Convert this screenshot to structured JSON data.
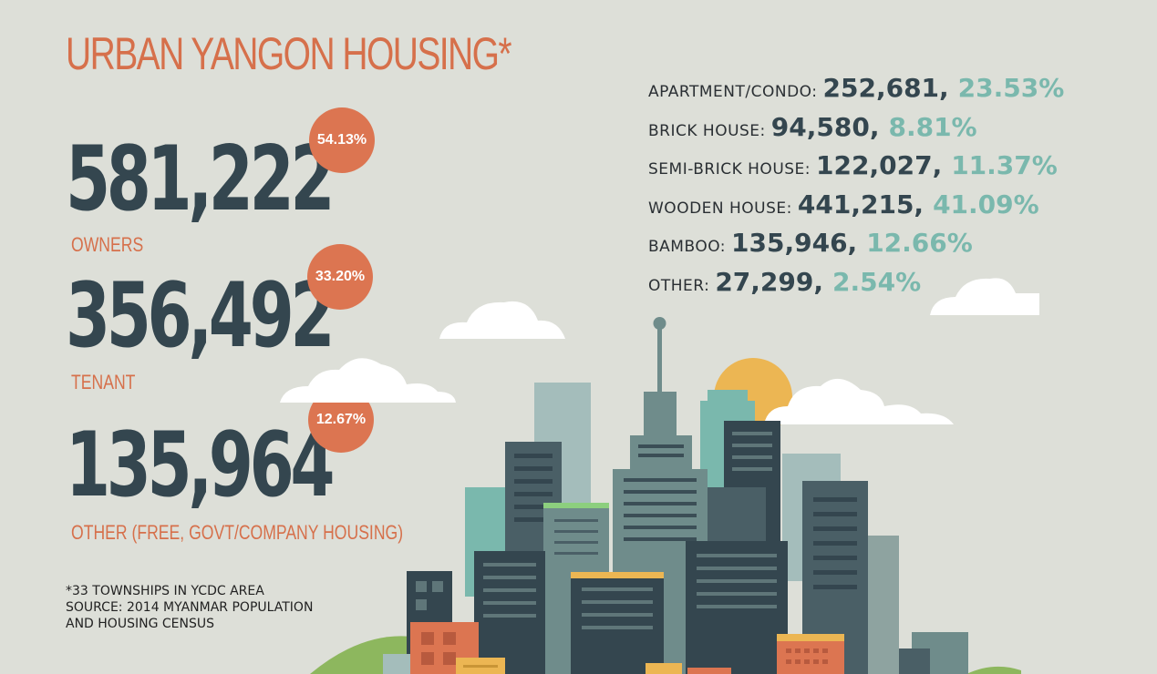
{
  "title": "URBAN YANGON HOUSING*",
  "tenure": [
    {
      "count": "581,222",
      "label": "OWNERS",
      "percent": "54.13%"
    },
    {
      "count": "356,492",
      "label": "TENANT",
      "percent": "33.20%"
    },
    {
      "count": "135,964",
      "label": "OTHER (FREE, GOVT/COMPANY HOUSING)",
      "percent": "12.67%"
    }
  ],
  "footnote": {
    "line1": "*33 TOWNSHIPS IN YCDC AREA",
    "line2": "SOURCE: 2014 MYANMAR POPULATION",
    "line3": "AND HOUSING CENSUS"
  },
  "housing_types": [
    {
      "label": "APARTMENT/CONDO:",
      "count": "252,681,",
      "percent": "23.53%"
    },
    {
      "label": "BRICK HOUSE:",
      "count": "94,580,",
      "percent": "8.81%"
    },
    {
      "label": "SEMI-BRICK HOUSE:",
      "count": "122,027,",
      "percent": "11.37%"
    },
    {
      "label": "WOODEN HOUSE:",
      "count": "441,215,",
      "percent": "41.09%"
    },
    {
      "label": "BAMBOO:",
      "count": "135,946,",
      "percent": "12.66%"
    },
    {
      "label": "OTHER:",
      "count": "27,299,",
      "percent": "2.54%"
    }
  ],
  "colors": {
    "background": "#dddfd8",
    "accent_orange": "#d6704b",
    "dark_slate": "#34464f",
    "teal": "#7ab8ad",
    "sun": "#ecb653"
  }
}
